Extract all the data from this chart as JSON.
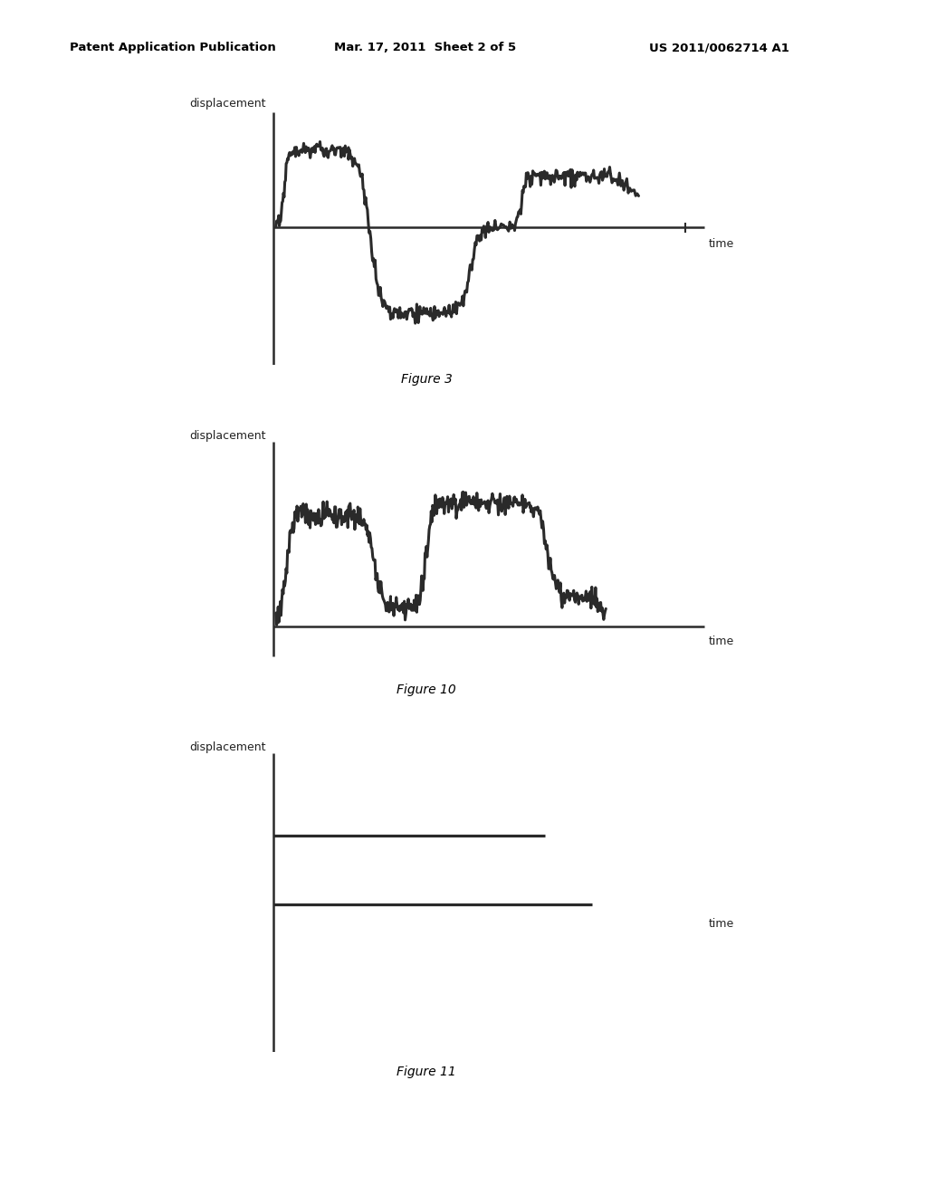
{
  "bg_color": "#ffffff",
  "header_left": "Patent Application Publication",
  "header_mid": "Mar. 17, 2011  Sheet 2 of 5",
  "header_right": "US 2011/0062714 A1",
  "fig3_caption": "Figure 3",
  "fig10_caption": "Figure 10",
  "fig11_caption": "Figure 11",
  "disp_label": "displacement",
  "time_label": "time",
  "line_color": "#2a2a2a",
  "lw_signal": 2.2,
  "lw_axis": 1.8
}
